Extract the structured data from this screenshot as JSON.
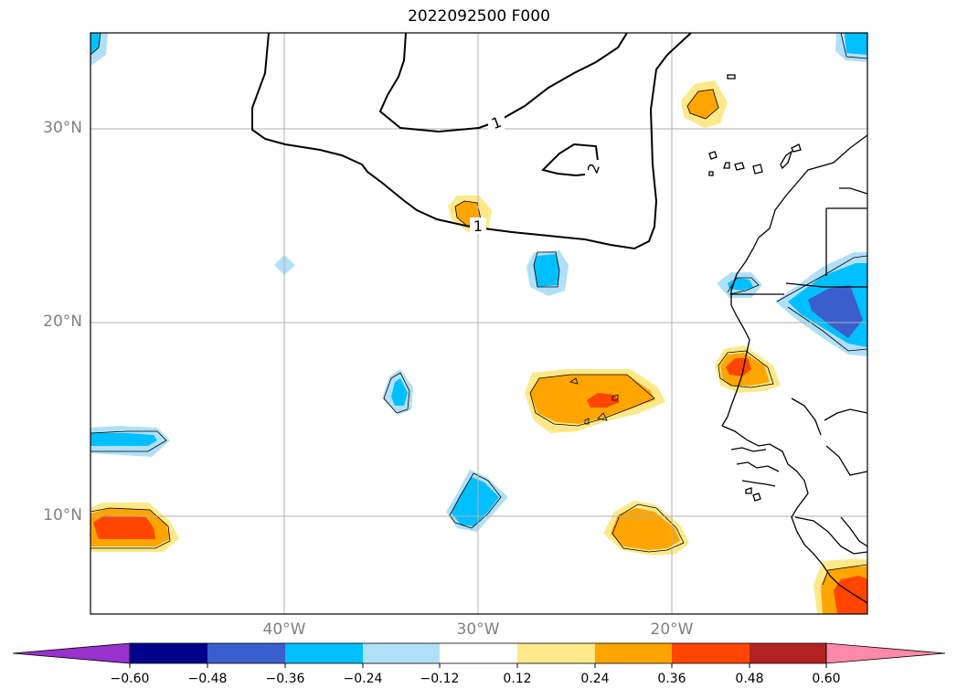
{
  "title": "2022092500 F000",
  "lat_labels": [
    "30°N",
    "20°N",
    "10°N"
  ],
  "lon_labels": [
    "40°W",
    "30°W",
    "20°W"
  ],
  "contour_labels": [
    "1",
    "1",
    "2"
  ],
  "colorbar": {
    "ticks": [
      "−0.60",
      "−0.48",
      "−0.36",
      "−0.24",
      "−0.12",
      "0.12",
      "0.24",
      "0.36",
      "0.48",
      "0.60"
    ],
    "colors": [
      "#9932cc",
      "#00008b",
      "#3a5fcd",
      "#00bfff",
      "#b0e0f8",
      "#ffffff",
      "#fde98a",
      "#ffa500",
      "#ff4500",
      "#b22222",
      "#ff89aa"
    ],
    "extend": "both"
  },
  "colors": {
    "light_blue": "#b0e0f8",
    "blue": "#00bfff",
    "dark_blue": "#3a5fcd",
    "light_yellow": "#fde98a",
    "orange": "#ffa500",
    "red_orange": "#ff4500",
    "grid": "#b0b0b0"
  }
}
